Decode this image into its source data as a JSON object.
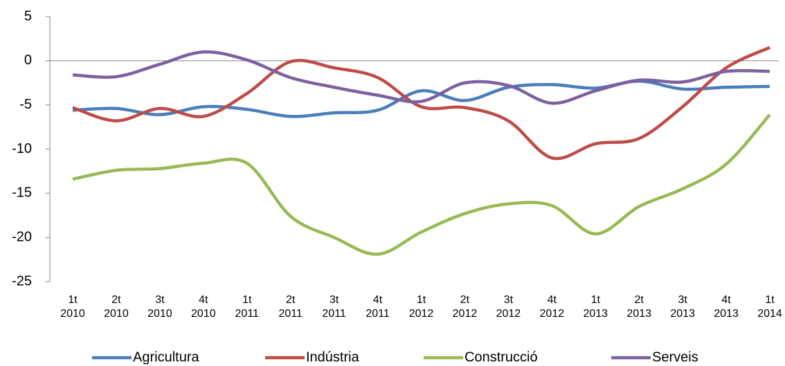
{
  "chart_data": {
    "type": "line",
    "categories": [
      "1t 2010",
      "2t 2010",
      "3t 2010",
      "4t 2010",
      "1t 2011",
      "2t 2011",
      "3t 2011",
      "4t 2011",
      "1t 2012",
      "2t 2012",
      "3t 2012",
      "4t 2012",
      "1t 2013",
      "2t 2013",
      "3t 2013",
      "4t 2013",
      "1t 2014"
    ],
    "series": [
      {
        "name": "Agricultura",
        "color": "#4a7ebb",
        "values": [
          -5.6,
          -5.4,
          -6.1,
          -5.2,
          -5.5,
          -6.3,
          -5.9,
          -5.6,
          -3.4,
          -4.5,
          -3.0,
          -2.7,
          -3.1,
          -2.3,
          -3.2,
          -3.0,
          -2.9
        ]
      },
      {
        "name": "Indústria",
        "color": "#be4b48",
        "values": [
          -5.3,
          -6.8,
          -5.4,
          -6.3,
          -3.7,
          -0.1,
          -0.8,
          -1.9,
          -5.2,
          -5.3,
          -6.8,
          -11.0,
          -9.4,
          -8.8,
          -5.2,
          -0.8,
          1.5
        ]
      },
      {
        "name": "Construcció",
        "color": "#98b954",
        "values": [
          -13.4,
          -12.4,
          -12.2,
          -11.6,
          -11.6,
          -17.6,
          -20.0,
          -21.9,
          -19.4,
          -17.3,
          -16.2,
          -16.4,
          -19.6,
          -16.5,
          -14.5,
          -11.7,
          -6.1
        ]
      },
      {
        "name": "Serveis",
        "color": "#7d60a0",
        "values": [
          -1.6,
          -1.8,
          -0.4,
          1.0,
          0.1,
          -1.9,
          -3.0,
          -3.9,
          -4.6,
          -2.5,
          -2.8,
          -4.8,
          -3.4,
          -2.2,
          -2.4,
          -1.2,
          -1.2
        ]
      }
    ],
    "ylim": [
      -25,
      5
    ],
    "yticks": [
      -25,
      -20,
      -15,
      -10,
      -5,
      0,
      5
    ],
    "grid": false,
    "legend": "bottom",
    "smooth": true
  }
}
